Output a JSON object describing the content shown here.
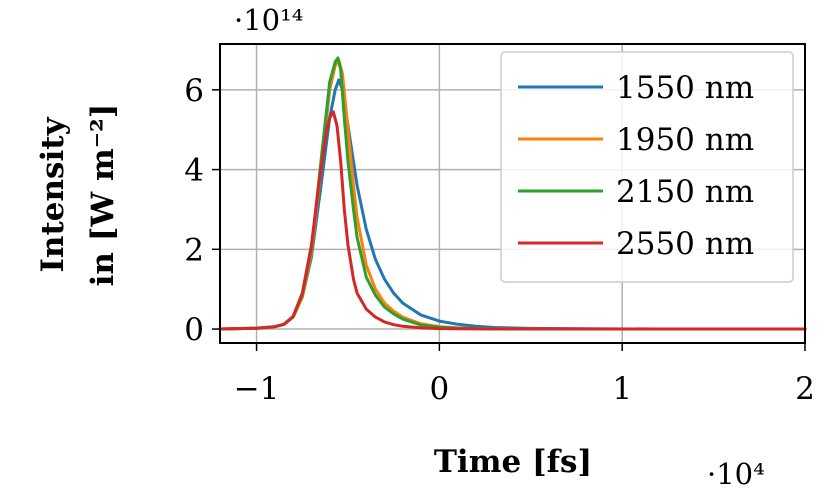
{
  "chart_data": {
    "type": "line",
    "xlabel": "Time [fs]",
    "ylabel_lines": [
      "Intensity",
      "in [W m⁻²]"
    ],
    "x_multiplier": "·10⁴",
    "y_multiplier": "·10¹⁴",
    "xlim": [
      -1.2,
      2.0
    ],
    "ylim": [
      -0.35,
      7.15
    ],
    "x_ticks": [
      -1,
      0,
      1,
      2
    ],
    "x_tick_labels": [
      "−1",
      "0",
      "1",
      "2"
    ],
    "y_ticks": [
      0,
      2,
      4,
      6
    ],
    "y_tick_labels": [
      "0",
      "2",
      "4",
      "6"
    ],
    "grid": true,
    "legend_position": "top-right",
    "series": [
      {
        "name": "1550 nm",
        "color": "#1f77b4",
        "x": [
          -1.2,
          -1.0,
          -0.9,
          -0.85,
          -0.8,
          -0.75,
          -0.7,
          -0.65,
          -0.6,
          -0.57,
          -0.55,
          -0.53,
          -0.5,
          -0.45,
          -0.4,
          -0.35,
          -0.3,
          -0.25,
          -0.2,
          -0.1,
          0.0,
          0.1,
          0.2,
          0.3,
          0.5,
          0.8,
          1.2,
          2.0
        ],
        "y": [
          0.0,
          0.02,
          0.06,
          0.12,
          0.3,
          0.8,
          1.8,
          3.5,
          5.3,
          6.0,
          6.25,
          6.0,
          5.1,
          3.6,
          2.5,
          1.75,
          1.25,
          0.9,
          0.65,
          0.35,
          0.2,
          0.12,
          0.07,
          0.04,
          0.015,
          0.005,
          0.001,
          0.0
        ]
      },
      {
        "name": "1950 nm",
        "color": "#ff7f0e",
        "x": [
          -1.2,
          -1.0,
          -0.9,
          -0.85,
          -0.8,
          -0.75,
          -0.7,
          -0.65,
          -0.6,
          -0.57,
          -0.55,
          -0.53,
          -0.5,
          -0.47,
          -0.45,
          -0.4,
          -0.35,
          -0.3,
          -0.25,
          -0.2,
          -0.1,
          0.0,
          0.1,
          0.2,
          0.4,
          0.8,
          2.0
        ],
        "y": [
          0.0,
          0.02,
          0.06,
          0.12,
          0.3,
          0.8,
          1.9,
          3.9,
          6.0,
          6.6,
          6.75,
          6.4,
          5.0,
          3.6,
          2.8,
          1.6,
          1.0,
          0.65,
          0.45,
          0.3,
          0.13,
          0.06,
          0.03,
          0.01,
          0.003,
          0.0,
          0.0
        ]
      },
      {
        "name": "2150 nm",
        "color": "#2ca02c",
        "x": [
          -1.2,
          -1.0,
          -0.9,
          -0.85,
          -0.8,
          -0.75,
          -0.7,
          -0.65,
          -0.6,
          -0.57,
          -0.555,
          -0.54,
          -0.52,
          -0.5,
          -0.47,
          -0.45,
          -0.4,
          -0.35,
          -0.3,
          -0.25,
          -0.2,
          -0.1,
          0.0,
          0.1,
          0.2,
          0.4,
          0.8,
          2.0
        ],
        "y": [
          0.0,
          0.02,
          0.06,
          0.12,
          0.3,
          0.85,
          2.0,
          4.1,
          6.2,
          6.7,
          6.8,
          6.5,
          5.3,
          4.2,
          3.0,
          2.3,
          1.3,
          0.85,
          0.55,
          0.38,
          0.25,
          0.1,
          0.05,
          0.025,
          0.01,
          0.002,
          0.0,
          0.0
        ]
      },
      {
        "name": "2550 nm",
        "color": "#d62728",
        "x": [
          -1.2,
          -1.0,
          -0.9,
          -0.85,
          -0.8,
          -0.75,
          -0.7,
          -0.66,
          -0.62,
          -0.6,
          -0.58,
          -0.56,
          -0.54,
          -0.52,
          -0.5,
          -0.47,
          -0.45,
          -0.4,
          -0.35,
          -0.3,
          -0.25,
          -0.2,
          -0.1,
          0.0,
          0.2,
          0.5,
          1.0,
          2.0
        ],
        "y": [
          0.0,
          0.02,
          0.06,
          0.12,
          0.32,
          0.9,
          2.1,
          3.6,
          4.9,
          5.3,
          5.45,
          5.1,
          4.2,
          3.0,
          2.1,
          1.25,
          0.9,
          0.5,
          0.3,
          0.18,
          0.11,
          0.07,
          0.03,
          0.012,
          0.003,
          0.0,
          0.0,
          0.0
        ]
      }
    ]
  }
}
